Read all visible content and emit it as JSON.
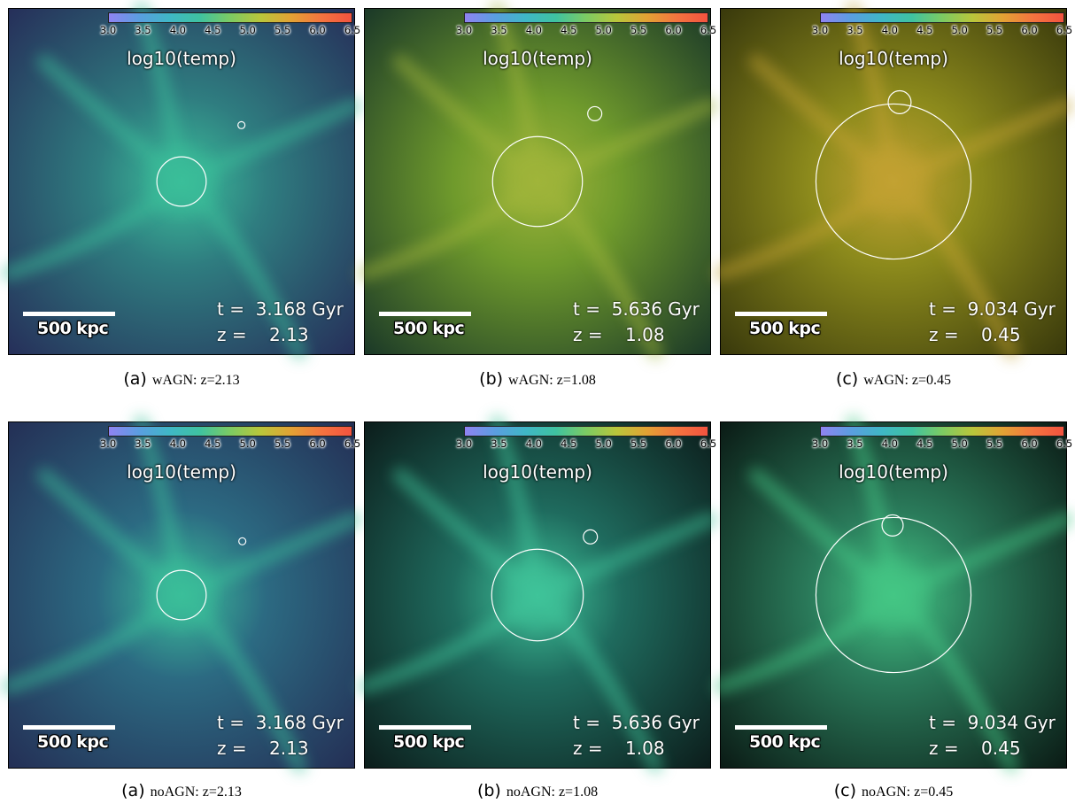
{
  "colorbar": {
    "ticks": [
      "3.0",
      "3.5",
      "4.0",
      "4.5",
      "5.0",
      "5.5",
      "6.0",
      "6.5"
    ],
    "label": "log10(temp)",
    "colors": [
      "#8f83f2",
      "#5a9ee0",
      "#3fb7c6",
      "#3fc2a0",
      "#7ccb63",
      "#b9c63b",
      "#e2a234",
      "#f4743f",
      "#f2533f"
    ]
  },
  "scale_label": "500 kpc",
  "panels": [
    {
      "letter": "(a)",
      "caption": "wAGN: z=2.13",
      "t": "t =  3.168 Gyr",
      "z": "z =    2.13",
      "tone": "#2f7d80",
      "edge": "#26305a",
      "glow": "#3bbf9a"
    },
    {
      "letter": "(b)",
      "caption": "wAGN: z=1.08",
      "t": "t =  5.636 Gyr",
      "z": "z =    1.08",
      "tone": "#6f9a2c",
      "edge": "#1c3a28",
      "glow": "#a0b53a"
    },
    {
      "letter": "(c)",
      "caption": "wAGN: z=0.45",
      "t": "t =  9.034 Gyr",
      "z": "z =    0.45",
      "tone": "#8c8a1c",
      "edge": "#3a3a0c",
      "glow": "#c3a233"
    },
    {
      "letter": "(a)",
      "caption": "noAGN: z=2.13",
      "t": "t =  3.168 Gyr",
      "z": "z =    2.13",
      "tone": "#2c6a82",
      "edge": "#243056",
      "glow": "#3bbf9a"
    },
    {
      "letter": "(b)",
      "caption": "noAGN: z=1.08",
      "t": "t =  5.636 Gyr",
      "z": "z =    1.08",
      "tone": "#1f6b5e",
      "edge": "#0c1e1c",
      "glow": "#3fc49a"
    },
    {
      "letter": "(c)",
      "caption": "noAGN: z=0.45",
      "t": "t =  9.034 Gyr",
      "z": "z =    0.45",
      "tone": "#2a7a5a",
      "edge": "#0b1c16",
      "glow": "#44c785"
    }
  ]
}
